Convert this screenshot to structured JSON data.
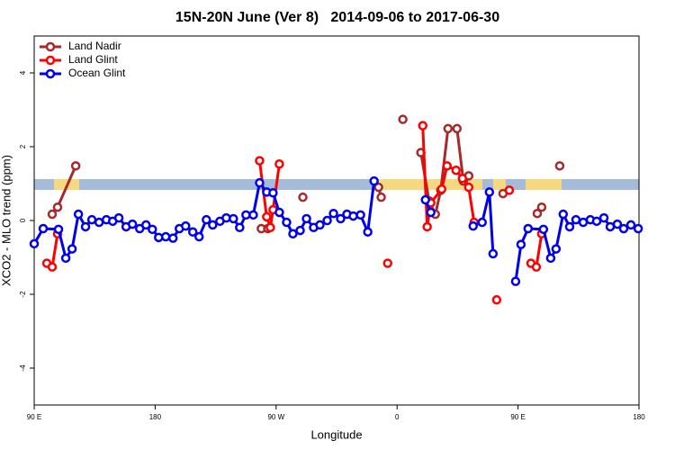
{
  "chart_data": {
    "type": "line",
    "title": "15N-20N June (Ver 8)   2014-09-06 to 2017-06-30",
    "xlabel": "Longitude",
    "ylabel": "XCO2 - MLO trend (ppm)",
    "xlim": [
      90,
      540
    ],
    "ylim": [
      -5,
      5
    ],
    "xticks": [
      {
        "value": 90,
        "label": "90 E"
      },
      {
        "value": 180,
        "label": "180"
      },
      {
        "value": 270,
        "label": "90 W"
      },
      {
        "value": 360,
        "label": "0"
      },
      {
        "value": 450,
        "label": "90 E"
      },
      {
        "value": 540,
        "label": "180"
      }
    ],
    "yticks": [
      -4,
      -2,
      0,
      2,
      4
    ],
    "legend": "top-left",
    "series": [
      {
        "name": "Land Nadir",
        "color": "#a52a2a",
        "x": [
          103.4,
          107.4,
          120.9,
          null,
          259,
          263.8,
          null,
          289.9,
          null,
          346.2,
          348.2,
          null,
          364.3,
          null,
          377.7,
          383.8,
          388.5,
          392.5,
          397.9,
          404.6,
          409.3,
          413.3,
          null,
          438.8,
          null,
          464.3,
          467.6,
          null,
          481
        ],
        "values": [
          0.17,
          0.36,
          1.48,
          null,
          -0.22,
          -0.22,
          null,
          0.63,
          null,
          0.9,
          0.63,
          null,
          2.74,
          null,
          1.84,
          0.53,
          0.17,
          0.82,
          2.49,
          2.49,
          1.07,
          1.21,
          null,
          0.73,
          null,
          0.19,
          0.36,
          null,
          1.48
        ]
      },
      {
        "name": "Land Glint",
        "color": "#ff0000",
        "x": [
          99.4,
          103.4,
          107.4,
          null,
          257.7,
          263.0,
          265.7,
          267.7,
          272.4,
          null,
          353,
          null,
          379.1,
          382.4,
          385.1,
          393.2,
          397.2,
          403.9,
          408.6,
          413.3,
          417.3,
          null,
          434.1,
          null,
          443.5,
          null,
          459.6,
          463.6,
          467.6
        ],
        "values": [
          -1.16,
          -1.26,
          -0.36,
          null,
          1.62,
          0.1,
          -0.19,
          0.29,
          1.53,
          null,
          -1.16,
          null,
          2.57,
          -0.17,
          0.48,
          0.85,
          1.48,
          1.36,
          1.14,
          0.9,
          -0.05,
          null,
          -2.15,
          null,
          0.82,
          null,
          -1.16,
          -1.26,
          -0.36
        ]
      },
      {
        "name": "Ocean Glint",
        "color": "#0000ee",
        "x": [
          90,
          96.7,
          108.1,
          113.5,
          118.2,
          122.9,
          128.2,
          132.9,
          138.3,
          143.7,
          148.4,
          153.0,
          158.4,
          163.1,
          168.5,
          173.2,
          177.9,
          182.6,
          187.9,
          193.3,
          198.0,
          202.7,
          208.0,
          212.7,
          218.1,
          222.8,
          228.2,
          232.9,
          238.2,
          242.9,
          247.6,
          253.0,
          257.7,
          263.0,
          267.7,
          272.4,
          277.8,
          282.5,
          287.9,
          292.6,
          297.9,
          302.6,
          308.0,
          312.7,
          318.0,
          322.7,
          327.4,
          332.8,
          338.2,
          342.9,
          null,
          381.1,
          385.1,
          null,
          416.6,
          423.3,
          428.7,
          431.4,
          null,
          448.2,
          452.2,
          457.5,
          468.9,
          474.3,
          478.3,
          483.6,
          488.4,
          493.1,
          498.5,
          503.8,
          508.5,
          513.9,
          518.6,
          523.9,
          528.6,
          534.0,
          539.4
        ],
        "values": [
          -0.63,
          -0.22,
          -0.24,
          -1.02,
          -0.77,
          0.17,
          -0.17,
          0.02,
          -0.05,
          0.02,
          -0.02,
          0.07,
          -0.17,
          -0.1,
          -0.22,
          -0.12,
          -0.24,
          -0.46,
          -0.44,
          -0.48,
          -0.22,
          -0.15,
          -0.31,
          -0.44,
          0.02,
          -0.12,
          -0.02,
          0.07,
          0.05,
          -0.19,
          0.15,
          0.15,
          1.02,
          0.77,
          0.75,
          0.22,
          -0.05,
          -0.36,
          -0.27,
          0.05,
          -0.19,
          -0.12,
          0.0,
          0.19,
          0.05,
          0.17,
          0.12,
          0.15,
          -0.31,
          1.07,
          null,
          0.56,
          0.22,
          null,
          -0.15,
          -0.05,
          0.77,
          -0.9,
          null,
          -1.65,
          -0.65,
          -0.22,
          -0.24,
          -1.02,
          -0.77,
          0.17,
          -0.17,
          0.02,
          -0.05,
          0.02,
          -0.02,
          0.07,
          -0.17,
          -0.1,
          -0.22,
          -0.12,
          -0.22
        ]
      }
    ]
  }
}
